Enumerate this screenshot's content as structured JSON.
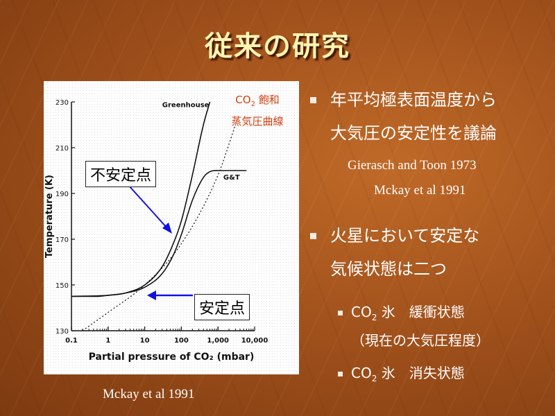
{
  "slide": {
    "title": "従来の研究",
    "source": "Mckay et al 1991"
  },
  "chart_callouts": {
    "unstable": "不安定点",
    "stable": "安定点",
    "co2_name": "CO",
    "co2_sub": "2",
    "co2_line1_rest": " 飽和",
    "co2_line2": "蒸気圧曲線"
  },
  "bullets": {
    "b1_line1": "年平均極表面温度から",
    "b1_line2": "大気圧の安定性を議論",
    "ref1": "Gierasch and Toon 1973",
    "ref2": "Mckay et al 1991",
    "b2_line1": "火星において安定な",
    "b2_line2": "気候状態は二つ",
    "sub1_prefix": "CO",
    "sub1_sub": "2",
    "sub1_rest": " 氷　緩衝状態",
    "sub1_line2": "（現在の大気圧程度）",
    "sub2_prefix": "CO",
    "sub2_sub": "2",
    "sub2_rest": " 氷　消失状態"
  },
  "colors": {
    "arrow": "#1010e0",
    "title": "#fff4b0"
  },
  "chart_data": {
    "type": "line",
    "xscale": "log",
    "xlabel": "Partial pressure of CO₂ (mbar)",
    "ylabel": "Temperature (K)",
    "xlim": [
      0.1,
      10000
    ],
    "ylim": [
      130,
      230
    ],
    "x_ticks": [
      0.1,
      1,
      10,
      100,
      1000,
      10000
    ],
    "x_tick_labels": [
      "0.1",
      "1",
      "10",
      "100",
      "1,000",
      "10,000"
    ],
    "y_ticks": [
      130,
      150,
      170,
      190,
      210,
      230
    ],
    "y_tick_labels": [
      "130",
      "150",
      "170",
      "190",
      "210",
      "230"
    ],
    "series": [
      {
        "name": "Greenhouse",
        "style": "solid",
        "x": [
          0.1,
          0.5,
          1,
          3,
          10,
          30,
          60,
          100,
          200,
          400,
          600
        ],
        "y": [
          145,
          145,
          145.5,
          146.5,
          150,
          158,
          168,
          178,
          198,
          220,
          230
        ]
      },
      {
        "name": "G&T",
        "style": "solid",
        "x": [
          0.1,
          1,
          3,
          10,
          30,
          60,
          100,
          200,
          400,
          600,
          1000,
          3000,
          6000
        ],
        "y": [
          145,
          145.5,
          146.5,
          149,
          155,
          163,
          172,
          187,
          197,
          199.5,
          200,
          200,
          200
        ]
      },
      {
        "name": "",
        "style": "dotted",
        "x": [
          0.2,
          1,
          10,
          100,
          1000,
          3000
        ],
        "y": [
          130,
          138,
          150,
          168,
          198,
          220
        ]
      }
    ]
  }
}
